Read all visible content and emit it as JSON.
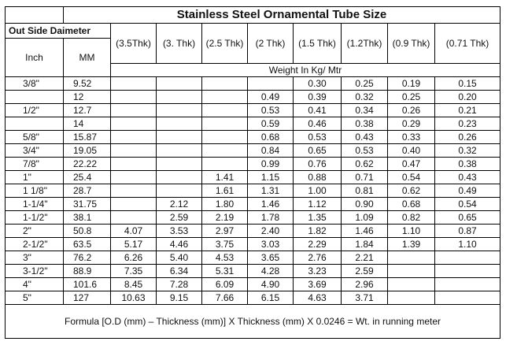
{
  "title": "Stainless Steel Ornamental Tube Size",
  "header": {
    "outside_diameter": "Out Side Daimeter",
    "columns": [
      "Inch",
      "MM",
      "(3.5Thk)",
      "(3. Thk)",
      "(2.5 Thk)",
      "(2 Thk)",
      "(1.5 Thk)",
      "(1.2Thk)",
      "(0.9 Thk)",
      "(0.71 Thk)"
    ],
    "weight_unit": "Weight In Kg/ Mtr"
  },
  "table": {
    "rows": [
      [
        "3/8\"",
        "9.52",
        null,
        null,
        null,
        null,
        "0.30",
        "0.25",
        "0.19",
        "0.15"
      ],
      [
        null,
        "12",
        null,
        null,
        null,
        "0.49",
        "0.39",
        "0.32",
        "0.25",
        "0.20"
      ],
      [
        "1/2\"",
        "12.7",
        null,
        null,
        null,
        "0.53",
        "0.41",
        "0.34",
        "0.26",
        "0.21"
      ],
      [
        null,
        "14",
        null,
        null,
        null,
        "0.59",
        "0.46",
        "0.38",
        "0.29",
        "0.23"
      ],
      [
        "5/8\"",
        "15.87",
        null,
        null,
        null,
        "0.68",
        "0.53",
        "0.43",
        "0.33",
        "0.26"
      ],
      [
        "3/4\"",
        "19.05",
        null,
        null,
        null,
        "0.84",
        "0.65",
        "0.53",
        "0.40",
        "0.32"
      ],
      [
        "7/8\"",
        "22.22",
        null,
        null,
        null,
        "0.99",
        "0.76",
        "0.62",
        "0.47",
        "0.38"
      ],
      [
        "1\"",
        "25.4",
        null,
        null,
        "1.41",
        "1.15",
        "0.88",
        "0.71",
        "0.54",
        "0.43"
      ],
      [
        "1 1/8\"",
        "28.7",
        null,
        null,
        "1.61",
        "1.31",
        "1.00",
        "0.81",
        "0.62",
        "0.49"
      ],
      [
        "1-1/4\"",
        "31.75",
        null,
        "2.12",
        "1.80",
        "1.46",
        "1.12",
        "0.90",
        "0.68",
        "0.54"
      ],
      [
        "1-1/2\"",
        "38.1",
        null,
        "2.59",
        "2.19",
        "1.78",
        "1.35",
        "1.09",
        "0.82",
        "0.65"
      ],
      [
        "2\"",
        "50.8",
        "4.07",
        "3.53",
        "2.97",
        "2.40",
        "1.82",
        "1.46",
        "1.10",
        "0.87"
      ],
      [
        "2-1/2\"",
        "63.5",
        "5.17",
        "4.46",
        "3.75",
        "3.03",
        "2.29",
        "1.84",
        "1.39",
        "1.10"
      ],
      [
        "3\"",
        "76.2",
        "6.26",
        "5.40",
        "4.53",
        "3.65",
        "2.76",
        "2.21",
        null,
        null
      ],
      [
        "3-1/2\"",
        "88.9",
        "7.35",
        "6.34",
        "5.31",
        "4.28",
        "3.23",
        "2.59",
        null,
        null
      ],
      [
        "4\"",
        "101.6",
        "8.45",
        "7.28",
        "6.09",
        "4.90",
        "3.69",
        "2.96",
        null,
        null
      ],
      [
        "5\"",
        "127",
        "10.63",
        "9.15",
        "7.66",
        "6.15",
        "4.63",
        "3.71",
        null,
        null
      ]
    ]
  },
  "footer": "Formula [O.D (mm) – Thickness (mm)] X Thickness (mm) X 0.0246 = Wt. in running meter"
}
